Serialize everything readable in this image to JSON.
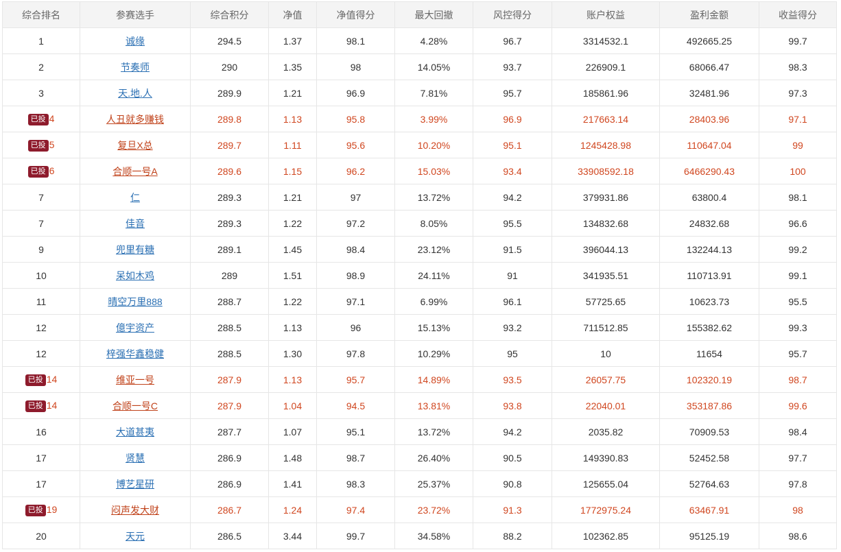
{
  "table": {
    "headers": [
      "综合排名",
      "参赛选手",
      "综合积分",
      "净值",
      "净值得分",
      "最大回撤",
      "风控得分",
      "账户权益",
      "盈利金额",
      "收益得分"
    ],
    "badge_label": "已投",
    "colors": {
      "normal_link": "#2a6fb3",
      "invested_text": "#d0461f",
      "badge_bg": "#8e1b2c"
    },
    "rows": [
      {
        "rank": "1",
        "invested": false,
        "name": "诚缘",
        "score": "294.5",
        "nav": "1.37",
        "nav_score": "98.1",
        "max_dd": "4.28%",
        "risk_score": "96.7",
        "equity": "3314532.1",
        "profit": "492665.25",
        "return_score": "99.7"
      },
      {
        "rank": "2",
        "invested": false,
        "name": "节奏师",
        "score": "290",
        "nav": "1.35",
        "nav_score": "98",
        "max_dd": "14.05%",
        "risk_score": "93.7",
        "equity": "226909.1",
        "profit": "68066.47",
        "return_score": "98.3"
      },
      {
        "rank": "3",
        "invested": false,
        "name": "天.地.人",
        "score": "289.9",
        "nav": "1.21",
        "nav_score": "96.9",
        "max_dd": "7.81%",
        "risk_score": "95.7",
        "equity": "185861.96",
        "profit": "32481.96",
        "return_score": "97.3"
      },
      {
        "rank": "4",
        "invested": true,
        "name": "人丑就多赚钱",
        "score": "289.8",
        "nav": "1.13",
        "nav_score": "95.8",
        "max_dd": "3.99%",
        "risk_score": "96.9",
        "equity": "217663.14",
        "profit": "28403.96",
        "return_score": "97.1"
      },
      {
        "rank": "5",
        "invested": true,
        "name": "复旦X总",
        "score": "289.7",
        "nav": "1.11",
        "nav_score": "95.6",
        "max_dd": "10.20%",
        "risk_score": "95.1",
        "equity": "1245428.98",
        "profit": "110647.04",
        "return_score": "99"
      },
      {
        "rank": "6",
        "invested": true,
        "name": "合顺一号A",
        "score": "289.6",
        "nav": "1.15",
        "nav_score": "96.2",
        "max_dd": "15.03%",
        "risk_score": "93.4",
        "equity": "33908592.18",
        "profit": "6466290.43",
        "return_score": "100"
      },
      {
        "rank": "7",
        "invested": false,
        "name": "仁",
        "score": "289.3",
        "nav": "1.21",
        "nav_score": "97",
        "max_dd": "13.72%",
        "risk_score": "94.2",
        "equity": "379931.86",
        "profit": "63800.4",
        "return_score": "98.1"
      },
      {
        "rank": "7",
        "invested": false,
        "name": "佳音",
        "score": "289.3",
        "nav": "1.22",
        "nav_score": "97.2",
        "max_dd": "8.05%",
        "risk_score": "95.5",
        "equity": "134832.68",
        "profit": "24832.68",
        "return_score": "96.6"
      },
      {
        "rank": "9",
        "invested": false,
        "name": "兜里有糖",
        "score": "289.1",
        "nav": "1.45",
        "nav_score": "98.4",
        "max_dd": "23.12%",
        "risk_score": "91.5",
        "equity": "396044.13",
        "profit": "132244.13",
        "return_score": "99.2"
      },
      {
        "rank": "10",
        "invested": false,
        "name": "呆如木鸡",
        "score": "289",
        "nav": "1.51",
        "nav_score": "98.9",
        "max_dd": "24.11%",
        "risk_score": "91",
        "equity": "341935.51",
        "profit": "110713.91",
        "return_score": "99.1"
      },
      {
        "rank": "11",
        "invested": false,
        "name": "晴空万里888",
        "score": "288.7",
        "nav": "1.22",
        "nav_score": "97.1",
        "max_dd": "6.99%",
        "risk_score": "96.1",
        "equity": "57725.65",
        "profit": "10623.73",
        "return_score": "95.5"
      },
      {
        "rank": "12",
        "invested": false,
        "name": "億宇资产",
        "score": "288.5",
        "nav": "1.13",
        "nav_score": "96",
        "max_dd": "15.13%",
        "risk_score": "93.2",
        "equity": "711512.85",
        "profit": "155382.62",
        "return_score": "99.3"
      },
      {
        "rank": "12",
        "invested": false,
        "name": "梓强华鑫稳健",
        "score": "288.5",
        "nav": "1.30",
        "nav_score": "97.8",
        "max_dd": "10.29%",
        "risk_score": "95",
        "equity": "10",
        "profit": "11654",
        "return_score": "95.7"
      },
      {
        "rank": "14",
        "invested": true,
        "name": "维亚一号",
        "score": "287.9",
        "nav": "1.13",
        "nav_score": "95.7",
        "max_dd": "14.89%",
        "risk_score": "93.5",
        "equity": "26057.75",
        "profit": "102320.19",
        "return_score": "98.7"
      },
      {
        "rank": "14",
        "invested": true,
        "name": "合顺一号C",
        "score": "287.9",
        "nav": "1.04",
        "nav_score": "94.5",
        "max_dd": "13.81%",
        "risk_score": "93.8",
        "equity": "22040.01",
        "profit": "353187.86",
        "return_score": "99.6"
      },
      {
        "rank": "16",
        "invested": false,
        "name": "大道甚夷",
        "score": "287.7",
        "nav": "1.07",
        "nav_score": "95.1",
        "max_dd": "13.72%",
        "risk_score": "94.2",
        "equity": "2035.82",
        "profit": "70909.53",
        "return_score": "98.4"
      },
      {
        "rank": "17",
        "invested": false,
        "name": "贤慧",
        "score": "286.9",
        "nav": "1.48",
        "nav_score": "98.7",
        "max_dd": "26.40%",
        "risk_score": "90.5",
        "equity": "149390.83",
        "profit": "52452.58",
        "return_score": "97.7"
      },
      {
        "rank": "17",
        "invested": false,
        "name": "博艺星研",
        "score": "286.9",
        "nav": "1.41",
        "nav_score": "98.3",
        "max_dd": "25.37%",
        "risk_score": "90.8",
        "equity": "125655.04",
        "profit": "52764.63",
        "return_score": "97.8"
      },
      {
        "rank": "19",
        "invested": true,
        "name": "闷声发大财",
        "score": "286.7",
        "nav": "1.24",
        "nav_score": "97.4",
        "max_dd": "23.72%",
        "risk_score": "91.3",
        "equity": "1772975.24",
        "profit": "63467.91",
        "return_score": "98"
      },
      {
        "rank": "20",
        "invested": false,
        "name": "天元",
        "score": "286.5",
        "nav": "3.44",
        "nav_score": "99.7",
        "max_dd": "34.58%",
        "risk_score": "88.2",
        "equity": "102362.85",
        "profit": "95125.19",
        "return_score": "98.6"
      }
    ]
  }
}
